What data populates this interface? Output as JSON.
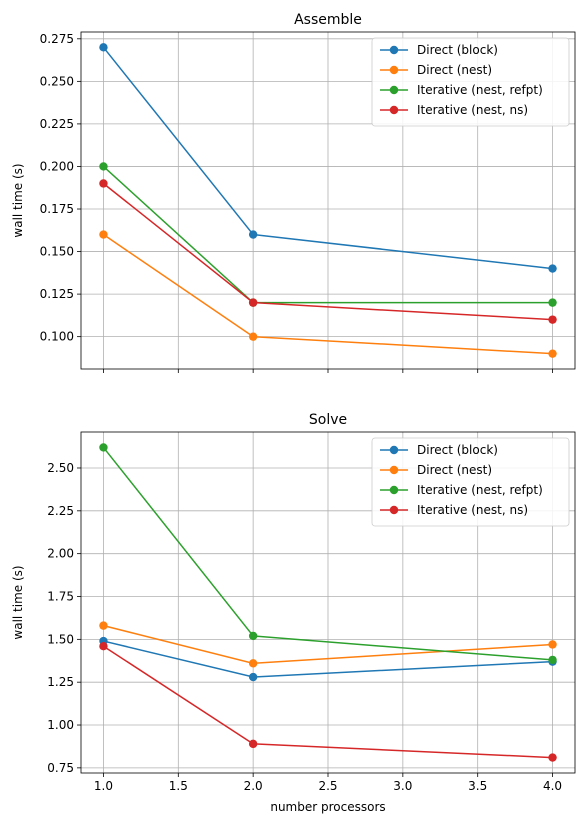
{
  "chart_data": [
    {
      "type": "line",
      "title": "Assemble",
      "xlabel": "",
      "ylabel": "wall time (s)",
      "x": [
        1.0,
        2.0,
        4.0
      ],
      "xlim": [
        0.85,
        4.15
      ],
      "ylim": [
        0.081,
        0.279
      ],
      "xticks": [
        1.0,
        1.5,
        2.0,
        2.5,
        3.0,
        3.5,
        4.0
      ],
      "xtick_labels": [
        "",
        "",
        "",
        "",
        "",
        "",
        ""
      ],
      "yticks": [
        0.1,
        0.125,
        0.15,
        0.175,
        0.2,
        0.225,
        0.25,
        0.275
      ],
      "ytick_labels": [
        "0.100",
        "0.125",
        "0.150",
        "0.175",
        "0.200",
        "0.225",
        "0.250",
        "0.275"
      ],
      "grid": true,
      "legend": "top-right",
      "series": [
        {
          "name": "Direct (block)",
          "color": "#1f77b4",
          "values": [
            0.27,
            0.16,
            0.14
          ]
        },
        {
          "name": "Direct (nest)",
          "color": "#ff7f0e",
          "values": [
            0.16,
            0.1,
            0.09
          ]
        },
        {
          "name": "Iterative (nest, refpt)",
          "color": "#2ca02c",
          "values": [
            0.2,
            0.12,
            0.12
          ]
        },
        {
          "name": "Iterative (nest, ns)",
          "color": "#d62728",
          "values": [
            0.19,
            0.12,
            0.11
          ]
        }
      ]
    },
    {
      "type": "line",
      "title": "Solve",
      "xlabel": "number processors",
      "ylabel": "wall time (s)",
      "x": [
        1.0,
        2.0,
        4.0
      ],
      "xlim": [
        0.85,
        4.15
      ],
      "ylim": [
        0.72,
        2.71
      ],
      "xticks": [
        1.0,
        1.5,
        2.0,
        2.5,
        3.0,
        3.5,
        4.0
      ],
      "xtick_labels": [
        "1.0",
        "1.5",
        "2.0",
        "2.5",
        "3.0",
        "3.5",
        "4.0"
      ],
      "yticks": [
        0.75,
        1.0,
        1.25,
        1.5,
        1.75,
        2.0,
        2.25,
        2.5
      ],
      "ytick_labels": [
        "0.75",
        "1.00",
        "1.25",
        "1.50",
        "1.75",
        "2.00",
        "2.25",
        "2.50"
      ],
      "grid": true,
      "legend": "top-right",
      "series": [
        {
          "name": "Direct (block)",
          "color": "#1f77b4",
          "values": [
            1.49,
            1.28,
            1.37
          ]
        },
        {
          "name": "Direct (nest)",
          "color": "#ff7f0e",
          "values": [
            1.58,
            1.36,
            1.47
          ]
        },
        {
          "name": "Iterative (nest, refpt)",
          "color": "#2ca02c",
          "values": [
            2.62,
            1.52,
            1.38
          ]
        },
        {
          "name": "Iterative (nest, ns)",
          "color": "#d62728",
          "values": [
            1.46,
            0.89,
            0.81
          ]
        }
      ]
    }
  ]
}
